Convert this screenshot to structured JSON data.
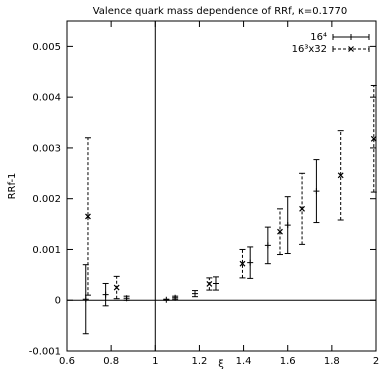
{
  "chart_data": {
    "type": "scatter",
    "title": "Valence quark mass dependence of RRf, κ=0.1770",
    "xlabel": "ξ",
    "ylabel": "RRf-1",
    "xlim": [
      0.6,
      2.0
    ],
    "ylim": [
      -0.001,
      0.0055
    ],
    "x_ticks": [
      0.6,
      0.8,
      1.0,
      1.2,
      1.4,
      1.6,
      1.8,
      2.0
    ],
    "x_tick_labels": [
      "0.6",
      "0.8",
      "1",
      "1.2",
      "1.4",
      "1.6",
      "1.8",
      "2"
    ],
    "y_ticks": [
      -0.001,
      0.0,
      0.001,
      0.002,
      0.003,
      0.004,
      0.005
    ],
    "y_tick_labels": [
      "-0.001",
      "0",
      "0.001",
      "0.002",
      "0.003",
      "0.004",
      "0.005"
    ],
    "reference_lines": {
      "x": 1.0,
      "y": 0.0
    },
    "grid": false,
    "legend_position": "top-right",
    "series": [
      {
        "name": "16⁴",
        "line_style": "solid",
        "marker": "plus",
        "points": [
          {
            "x": 0.685,
            "y": 2e-05,
            "err": 0.00068
          },
          {
            "x": 0.775,
            "y": 0.00011,
            "err": 0.00022
          },
          {
            "x": 0.87,
            "y": 4e-05,
            "err": 4e-05
          },
          {
            "x": 1.05,
            "y": 1e-05,
            "err": 1e-05
          },
          {
            "x": 1.09,
            "y": 5e-05,
            "err": 3e-05
          },
          {
            "x": 1.18,
            "y": 0.00013,
            "err": 6e-05
          },
          {
            "x": 1.275,
            "y": 0.00033,
            "err": 0.00013
          },
          {
            "x": 1.43,
            "y": 0.00074,
            "err": 0.00031
          },
          {
            "x": 1.51,
            "y": 0.00108,
            "err": 0.00036
          },
          {
            "x": 1.6,
            "y": 0.00148,
            "err": 0.00056
          },
          {
            "x": 1.73,
            "y": 0.00215,
            "err": 0.00062
          }
        ]
      },
      {
        "name": "16³x32",
        "line_style": "dashed",
        "marker": "x",
        "points": [
          {
            "x": 0.695,
            "y": 0.00165,
            "err": 0.00155
          },
          {
            "x": 0.825,
            "y": 0.00025,
            "err": 0.00022
          },
          {
            "x": 1.245,
            "y": 0.00032,
            "err": 0.00012
          },
          {
            "x": 1.395,
            "y": 0.00072,
            "err": 0.00028
          },
          {
            "x": 1.565,
            "y": 0.00135,
            "err": 0.00045
          },
          {
            "x": 1.665,
            "y": 0.0018,
            "err": 0.0007
          },
          {
            "x": 1.84,
            "y": 0.00246,
            "err": 0.00088
          },
          {
            "x": 1.99,
            "y": 0.00318,
            "err": 0.00105
          }
        ]
      }
    ]
  }
}
